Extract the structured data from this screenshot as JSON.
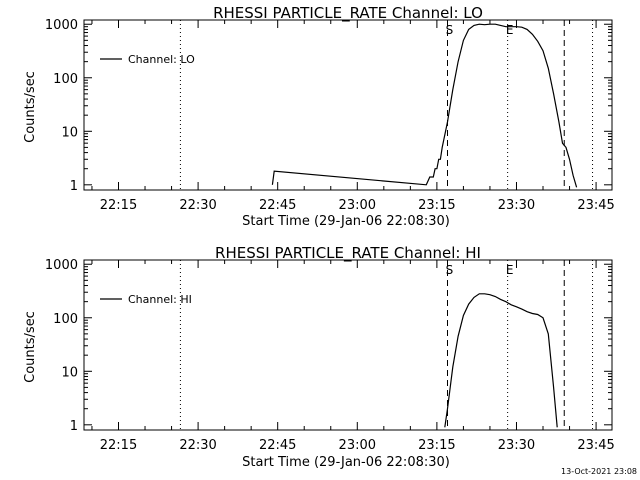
{
  "chart_data": [
    {
      "type": "line",
      "title": "RHESSI PARTICLE_RATE Channel: LO",
      "xlabel": "Start Time (29-Jan-06 22:08:30)",
      "ylabel": "Counts/sec",
      "yscale": "log",
      "ylim": [
        0.8,
        1200
      ],
      "xlim": [
        "22:08:30",
        "23:48:00"
      ],
      "x_ticks": [
        "22:15",
        "22:30",
        "22:45",
        "23:00",
        "23:15",
        "23:30",
        "23:45"
      ],
      "y_ticks": [
        "1",
        "10",
        "100",
        "1000"
      ],
      "legend": {
        "position": "top-left",
        "entries": [
          "Channel: LO"
        ]
      },
      "markers": [
        {
          "label": "S",
          "time": "23:17:00",
          "style": "dashed"
        },
        {
          "label": "E",
          "time": "23:28:20",
          "style": "dotted"
        }
      ],
      "vlines": [
        {
          "time": "22:26:40",
          "style": "dotted"
        },
        {
          "time": "23:39:00",
          "style": "dashed"
        },
        {
          "time": "23:44:20",
          "style": "dotted"
        }
      ],
      "series": [
        {
          "name": "Channel: LO",
          "x": [
            "22:44:00",
            "22:44:20",
            "23:13:00",
            "23:13:40",
            "23:14:20",
            "23:14:40",
            "23:15:00",
            "23:15:20",
            "23:15:40",
            "23:16:00",
            "23:17:00",
            "23:18:00",
            "23:19:00",
            "23:20:00",
            "23:21:00",
            "23:22:00",
            "23:23:00",
            "23:24:00",
            "23:25:00",
            "23:26:00",
            "23:27:00",
            "23:28:00",
            "23:29:00",
            "23:30:00",
            "23:31:00",
            "23:32:00",
            "23:33:00",
            "23:34:00",
            "23:35:00",
            "23:36:00",
            "23:37:00",
            "23:38:00",
            "23:38:40",
            "23:39:20",
            "23:40:00",
            "23:40:40",
            "23:41:20"
          ],
          "y": [
            1.0,
            1.8,
            1.0,
            1.4,
            1.4,
            2.0,
            2.0,
            3.0,
            3.0,
            5.0,
            15,
            60,
            200,
            500,
            800,
            950,
            1000,
            980,
            1000,
            1000,
            950,
            900,
            900,
            900,
            880,
            800,
            650,
            480,
            320,
            150,
            50,
            15,
            6,
            5,
            3,
            1.5,
            0.9
          ]
        }
      ]
    },
    {
      "type": "line",
      "title": "RHESSI PARTICLE_RATE Channel: HI",
      "xlabel": "Start Time (29-Jan-06 22:08:30)",
      "ylabel": "Counts/sec",
      "yscale": "log",
      "ylim": [
        0.8,
        1200
      ],
      "xlim": [
        "22:08:30",
        "23:48:00"
      ],
      "x_ticks": [
        "22:15",
        "22:30",
        "22:45",
        "23:00",
        "23:15",
        "23:30",
        "23:45"
      ],
      "y_ticks": [
        "1",
        "10",
        "100",
        "1000"
      ],
      "legend": {
        "position": "top-left",
        "entries": [
          "Channel: HI"
        ]
      },
      "markers": [
        {
          "label": "S",
          "time": "23:17:00",
          "style": "dashed"
        },
        {
          "label": "E",
          "time": "23:28:20",
          "style": "dotted"
        }
      ],
      "vlines": [
        {
          "time": "22:26:40",
          "style": "dotted"
        },
        {
          "time": "23:39:00",
          "style": "dashed"
        },
        {
          "time": "23:44:20",
          "style": "dotted"
        }
      ],
      "series": [
        {
          "name": "Channel: HI",
          "x": [
            "23:16:30",
            "23:17:00",
            "23:17:30",
            "23:18:00",
            "23:19:00",
            "23:20:00",
            "23:21:00",
            "23:22:00",
            "23:23:00",
            "23:24:00",
            "23:25:00",
            "23:26:00",
            "23:27:00",
            "23:28:00",
            "23:29:00",
            "23:30:00",
            "23:31:00",
            "23:32:00",
            "23:33:00",
            "23:34:00",
            "23:35:00",
            "23:36:00",
            "23:37:00",
            "23:37:40"
          ],
          "y": [
            0.9,
            2,
            5,
            12,
            45,
            110,
            180,
            240,
            280,
            280,
            270,
            250,
            220,
            200,
            175,
            160,
            145,
            130,
            120,
            115,
            100,
            50,
            5,
            0.9
          ]
        }
      ]
    }
  ],
  "footer": {
    "stamp": "13-Oct-2021 23:08"
  }
}
